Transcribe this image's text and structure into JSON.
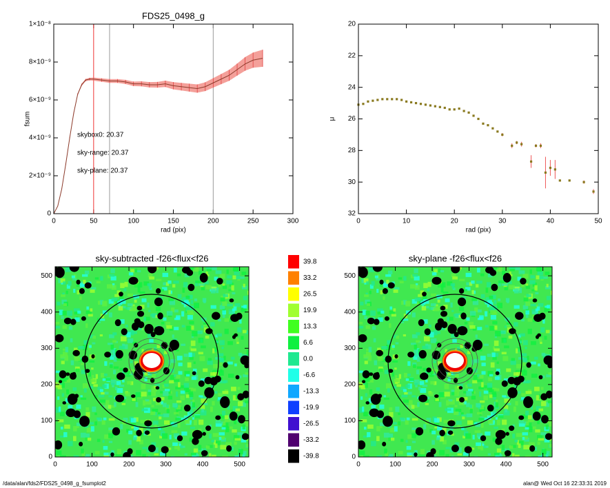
{
  "chart_data": [
    {
      "type": "line",
      "title": "FDS25_0498_g",
      "xlabel": "rad (pix)",
      "ylabel": "fsum",
      "xlim": [
        0,
        300
      ],
      "xticks": [
        0,
        50,
        100,
        150,
        200,
        250,
        300
      ],
      "ylim": [
        0,
        1e-08
      ],
      "yticks": [
        0,
        {
          "value": 2e-09,
          "label": "2×10⁻⁹"
        },
        {
          "value": 4e-09,
          "label": "4×10⁻⁹"
        },
        {
          "value": 6e-09,
          "label": "6×10⁻⁹"
        },
        {
          "value": 8e-09,
          "label": "8×10⁻⁹"
        },
        {
          "value": 1e-08,
          "label": "1×10⁻⁸"
        }
      ],
      "x": [
        0,
        5,
        10,
        15,
        20,
        25,
        30,
        35,
        40,
        45,
        50,
        60,
        70,
        80,
        90,
        100,
        110,
        120,
        130,
        140,
        150,
        160,
        170,
        180,
        190,
        200,
        210,
        220,
        230,
        240,
        250,
        262
      ],
      "series": [
        {
          "color": "#8b3a2a",
          "band_color": "#f4a09a",
          "values": [
            0,
            4e-10,
            1.3e-09,
            2.6e-09,
            4e-09,
            5.3e-09,
            6.3e-09,
            6.8e-09,
            7.05e-09,
            7.1e-09,
            7.1e-09,
            7.05e-09,
            7e-09,
            7e-09,
            6.95e-09,
            6.85e-09,
            6.85e-09,
            6.8e-09,
            6.8e-09,
            6.85e-09,
            6.75e-09,
            6.7e-09,
            6.65e-09,
            6.6e-09,
            6.7e-09,
            6.9e-09,
            7.1e-09,
            7.3e-09,
            7.6e-09,
            7.9e-09,
            8.1e-09,
            8.2e-09
          ],
          "errors": [
            0,
            1e-11,
            2e-11,
            3e-11,
            4e-11,
            5e-11,
            5e-11,
            6e-11,
            6e-11,
            7e-11,
            8e-11,
            9e-11,
            1e-10,
            1e-10,
            1.1e-10,
            1.2e-10,
            1.3e-10,
            1.4e-10,
            1.5e-10,
            1.7e-10,
            1.9e-10,
            2e-10,
            2.1e-10,
            2.2e-10,
            2.3e-10,
            2.5e-10,
            2.7e-10,
            2.9e-10,
            3.2e-10,
            3.6e-10,
            4e-10,
            4.5e-10
          ]
        }
      ],
      "vlines": [
        {
          "x": 50,
          "color": "#e33"
        },
        {
          "x": 70,
          "color": "#999"
        },
        {
          "x": 200,
          "color": "#999"
        }
      ],
      "annotations": [
        {
          "text": "skybox0: 20.37",
          "color": "#000"
        },
        {
          "text": "sky-range: 20.37",
          "color": "#e22"
        },
        {
          "text": "sky-plane: 20.37",
          "color": "#2c2"
        }
      ]
    },
    {
      "type": "scatter",
      "xlabel": "rad (pix)",
      "ylabel": "μ",
      "xlim": [
        0,
        50
      ],
      "xticks": [
        0,
        10,
        20,
        30,
        40,
        50
      ],
      "ylim": [
        32,
        20
      ],
      "yticks": [
        20,
        22,
        24,
        26,
        28,
        30,
        32
      ],
      "x": [
        0,
        1,
        2,
        3,
        4,
        5,
        6,
        7,
        8,
        9,
        10,
        11,
        12,
        13,
        14,
        15,
        16,
        17,
        18,
        19,
        20,
        21,
        22,
        23,
        24,
        25,
        26,
        27,
        28,
        29,
        30,
        32,
        33,
        34,
        36,
        37,
        38,
        39,
        40,
        41,
        42,
        44,
        47,
        49
      ],
      "series": [
        {
          "color": "#8a7a20",
          "error_color": "#e55",
          "values": [
            25.1,
            25.05,
            24.9,
            24.85,
            24.8,
            24.75,
            24.75,
            24.75,
            24.75,
            24.8,
            24.9,
            24.95,
            25.0,
            25.05,
            25.1,
            25.15,
            25.2,
            25.25,
            25.3,
            25.4,
            25.4,
            25.35,
            25.5,
            25.6,
            25.8,
            26.0,
            26.3,
            26.4,
            26.6,
            26.8,
            27.0,
            27.7,
            27.5,
            27.6,
            28.7,
            27.7,
            27.7,
            29.4,
            29.1,
            29.2,
            29.9,
            29.9,
            30.0,
            30.6
          ],
          "errors": [
            0.05,
            0.05,
            0.05,
            0.05,
            0.05,
            0.05,
            0.05,
            0.05,
            0.05,
            0.05,
            0.05,
            0.05,
            0.05,
            0.05,
            0.05,
            0.05,
            0.05,
            0.05,
            0.05,
            0.05,
            0.05,
            0.05,
            0.05,
            0.05,
            0.05,
            0.05,
            0.05,
            0.05,
            0.05,
            0.05,
            0.1,
            0.15,
            0.1,
            0.15,
            0.4,
            0.1,
            0.15,
            1.0,
            0.5,
            0.6,
            0.05,
            0.05,
            0.1,
            0.15
          ]
        }
      ]
    },
    {
      "type": "image",
      "title": "sky-subtracted -f26<flux<f26",
      "xlim": [
        0,
        525
      ],
      "xticks": [
        0,
        100,
        200,
        300,
        400,
        500
      ],
      "ylim": [
        0,
        525
      ],
      "yticks": [
        0,
        100,
        200,
        300,
        400,
        500
      ]
    },
    {
      "type": "colorbar",
      "levels": [
        39.8,
        33.2,
        26.5,
        19.9,
        13.3,
        6.6,
        {
          "value": 0,
          "label": "0.0"
        },
        -6.6,
        -13.3,
        -19.9,
        -26.5,
        -33.2,
        -39.8
      ],
      "colors": [
        "#ff0000",
        "#ff8000",
        "#ffff00",
        "#a0ff30",
        "#40ff20",
        "#10f040",
        "#20e890",
        "#20ffe8",
        "#10a8ff",
        "#1040ff",
        "#4010d0",
        "#500070",
        "#000000"
      ]
    },
    {
      "type": "image",
      "title": "sky-plane -f26<flux<f26",
      "xlim": [
        0,
        525
      ],
      "xticks": [
        0,
        100,
        200,
        300,
        400,
        500
      ],
      "ylim": [
        0,
        525
      ],
      "yticks": [
        0,
        100,
        200,
        300,
        400,
        500
      ]
    }
  ],
  "footer": {
    "left": "/data/alan/fds2/FDS25_0498_g_fsumplot2",
    "right": "alan@  Wed Oct 16 22:33:31 2019"
  }
}
